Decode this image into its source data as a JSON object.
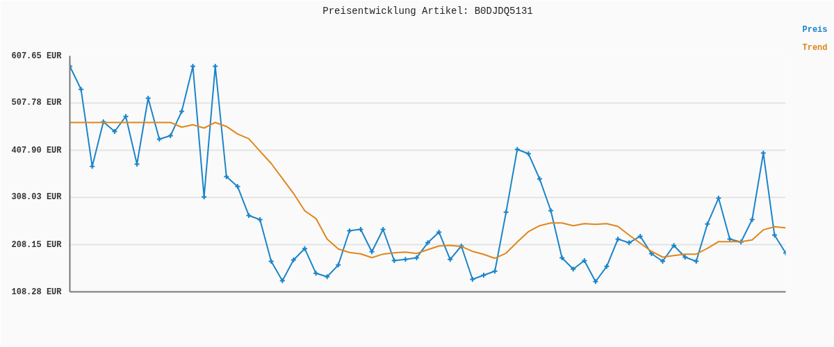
{
  "chart_data": {
    "type": "line",
    "title": "Preisentwicklung Artikel: B0DJDQ5131",
    "categories": [
      null,
      null,
      null,
      null,
      null,
      null,
      null,
      null,
      null,
      null,
      null,
      null,
      null,
      null,
      null,
      null,
      null,
      null,
      null,
      null,
      null,
      null,
      null,
      null,
      null,
      null,
      null,
      null,
      null,
      null,
      null,
      null,
      null,
      null,
      null,
      null,
      null,
      null,
      null,
      null,
      null,
      null,
      null,
      null,
      null,
      null,
      null,
      null,
      null,
      null,
      null,
      null,
      null,
      null,
      null,
      null,
      null,
      null,
      null,
      null,
      null,
      null,
      null,
      null,
      null
    ],
    "series": [
      {
        "name": "Preis",
        "color": "#1a84c9",
        "marker": "cross",
        "values": [
          585.6,
          536.7,
          373.7,
          468.1,
          447.6,
          479.5,
          378.5,
          518.1,
          431.4,
          438.8,
          490.2,
          585.6,
          309.1,
          585.6,
          352.1,
          331.1,
          269.9,
          261.0,
          172.9,
          131.8,
          175.8,
          199.8,
          147.5,
          140.2,
          165.1,
          237.5,
          240.5,
          193.0,
          240.5,
          174.4,
          176.9,
          180.3,
          212.1,
          234.6,
          176.9,
          205.2,
          134.7,
          143.5,
          151.9,
          276.7,
          409.8,
          400.6,
          347.2,
          280.1,
          180.3,
          156.3,
          174.4,
          129.9,
          162.2,
          219.9,
          212.1,
          225.8,
          189.1,
          172.9,
          206.3,
          181.7,
          172.9,
          251.8,
          306.6,
          219.9,
          213.6,
          261.0,
          402.0,
          228.3,
          190.5
        ]
      },
      {
        "name": "Trend",
        "color": "#e0861a",
        "marker": "none",
        "values": [
          466.7,
          466.7,
          466.7,
          466.7,
          466.7,
          466.7,
          466.7,
          466.7,
          466.7,
          466.7,
          456.8,
          461.8,
          454.9,
          466.7,
          458.3,
          442.2,
          432.4,
          406.0,
          380.0,
          348.2,
          316.4,
          279.7,
          263.5,
          219.9,
          198.9,
          191.6,
          188.6,
          180.7,
          188.1,
          191.0,
          192.5,
          189.5,
          197.4,
          205.2,
          206.7,
          204.2,
          193.9,
          187.6,
          179.2,
          190.1,
          213.6,
          235.6,
          248.3,
          254.1,
          254.1,
          248.3,
          252.7,
          251.2,
          252.7,
          246.8,
          228.3,
          211.1,
          193.9,
          181.7,
          185.1,
          188.1,
          188.1,
          200.4,
          214.5,
          214.5,
          214.5,
          218.0,
          239.5,
          245.9,
          243.9
        ]
      }
    ],
    "ylim": [
      108.28,
      607.65
    ],
    "yticks": [
      {
        "value": 108.28,
        "label": "108.28 EUR"
      },
      {
        "value": 208.15,
        "label": "208.15 EUR"
      },
      {
        "value": 308.03,
        "label": "308.03 EUR"
      },
      {
        "value": 407.9,
        "label": "407.90 EUR"
      },
      {
        "value": 507.78,
        "label": "507.78 EUR"
      },
      {
        "value": 607.65,
        "label": "607.65 EUR"
      }
    ],
    "tick_labels": "y",
    "grid": "y",
    "legend": "top right",
    "line_style": "solid"
  }
}
